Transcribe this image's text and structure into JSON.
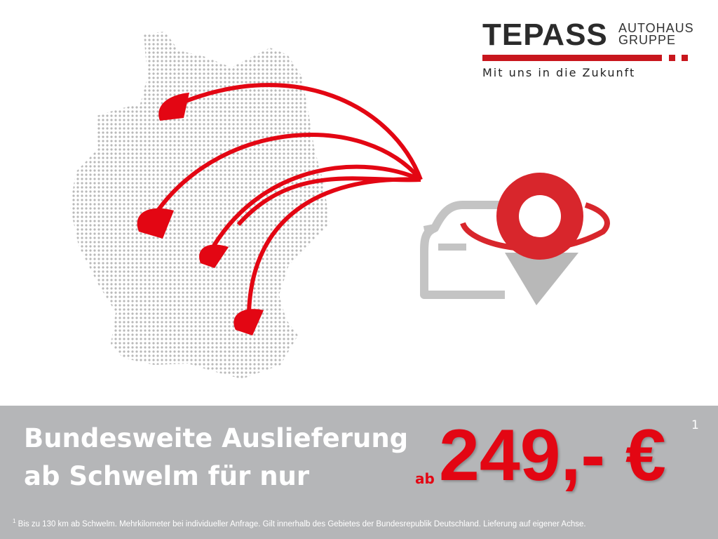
{
  "logo": {
    "brand": "TEPASS",
    "sub_line1": "AUTOHAUS",
    "sub_line2": "GRUPPE",
    "tagline": "Mit uns in die Zukunft"
  },
  "colors": {
    "accent_red": "#e30613",
    "banner_gray": "#b5b6b8",
    "map_gray": "#b9b9b9"
  },
  "illustration": {
    "map": "germany-dotted-map",
    "arrows": 5,
    "icons": [
      "car-icon",
      "location-pin-icon"
    ]
  },
  "banner": {
    "headline_line1": "Bundesweite Auslieferung",
    "headline_line2": "ab Schwelm für nur",
    "price_prefix": "ab",
    "price": "249,- €",
    "footnote_marker": "1",
    "footnote": "Bis zu 130 km ab Schwelm. Mehrkilometer bei individueller Anfrage. Gilt innerhalb des Gebietes der Bundesrepublik Deutschland. Lieferung auf eigener Achse."
  }
}
